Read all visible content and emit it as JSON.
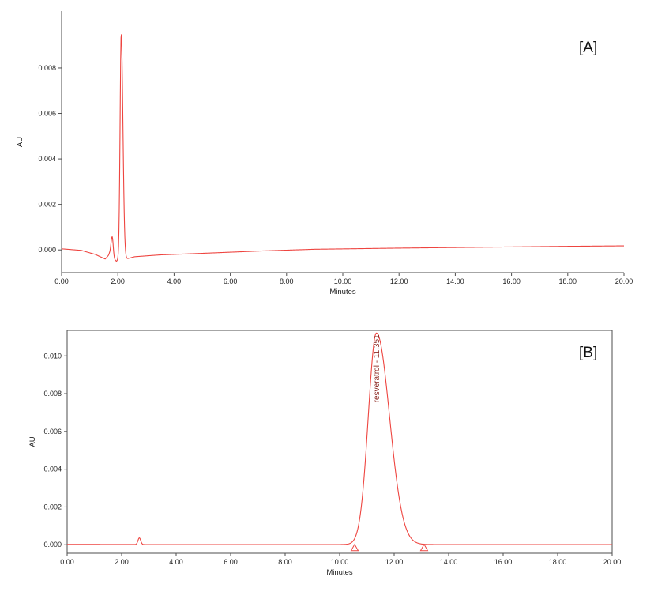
{
  "figure": {
    "background": "#ffffff"
  },
  "chart_data": [
    {
      "id": "A",
      "type": "line",
      "panel_label": "[A]",
      "title": "",
      "xlabel": "Minutes",
      "ylabel": "AU",
      "xlim": [
        0,
        20
      ],
      "ylim": [
        -0.001,
        0.0105
      ],
      "x_ticks": [
        0,
        2,
        4,
        6,
        8,
        10,
        12,
        14,
        16,
        18,
        20
      ],
      "x_tick_labels": [
        "0.00",
        "2.00",
        "4.00",
        "6.00",
        "8.00",
        "10.00",
        "12.00",
        "14.00",
        "16.00",
        "18.00",
        "20.00"
      ],
      "y_ticks": [
        0,
        0.002,
        0.004,
        0.006,
        0.008
      ],
      "y_tick_labels": [
        "0.000",
        "0.002",
        "0.004",
        "0.006",
        "0.008"
      ],
      "grid": false,
      "boxed": false,
      "line_color": "#ee4540",
      "axis_color": "#4d4d4d",
      "text_color": "#1c1c1c",
      "peak_label_color": "#8b2720",
      "baseline_points": [
        [
          0,
          5e-05
        ],
        [
          0.7,
          -2e-05
        ],
        [
          1.2,
          -0.0002
        ],
        [
          1.55,
          -0.0004
        ],
        [
          1.7,
          -0.0002
        ],
        [
          1.95,
          -0.0005
        ],
        [
          2.05,
          -0.0004
        ],
        [
          2.3,
          -0.0004
        ],
        [
          2.6,
          -0.0003
        ],
        [
          3.5,
          -0.00022
        ],
        [
          5,
          -0.00015
        ],
        [
          7,
          -5e-05
        ],
        [
          9,
          3e-05
        ],
        [
          12,
          8e-05
        ],
        [
          15,
          0.00012
        ],
        [
          18,
          0.00016
        ],
        [
          20,
          0.00018
        ]
      ],
      "peaks": [
        {
          "center": 1.8,
          "height": 0.0009,
          "sigma_left": 0.045,
          "sigma_right": 0.035,
          "label": ""
        },
        {
          "center": 2.12,
          "height": 0.0099,
          "sigma_left": 0.04,
          "sigma_right": 0.06,
          "label": ""
        }
      ],
      "integration_markers": []
    },
    {
      "id": "B",
      "type": "line",
      "panel_label": "[B]",
      "title": "",
      "xlabel": "Minutes",
      "ylabel": "AU",
      "xlim": [
        0,
        20
      ],
      "ylim": [
        -0.00045,
        0.01135
      ],
      "x_ticks": [
        0,
        2,
        4,
        6,
        8,
        10,
        12,
        14,
        16,
        18,
        20
      ],
      "x_tick_labels": [
        "0.00",
        "2.00",
        "4.00",
        "6.00",
        "8.00",
        "10.00",
        "12.00",
        "14.00",
        "16.00",
        "18.00",
        "20.00"
      ],
      "y_ticks": [
        0,
        0.002,
        0.004,
        0.006,
        0.008,
        0.01
      ],
      "y_tick_labels": [
        "0.000",
        "0.002",
        "0.004",
        "0.006",
        "0.008",
        "0.010"
      ],
      "grid": false,
      "boxed": true,
      "line_color": "#ee4540",
      "axis_color": "#4d4d4d",
      "text_color": "#1c1c1c",
      "peak_label_color": "#8b2720",
      "baseline_points": [
        [
          0,
          2e-05
        ],
        [
          3,
          1e-05
        ],
        [
          20,
          1e-05
        ]
      ],
      "peaks": [
        {
          "center": 2.65,
          "height": 0.00035,
          "sigma_left": 0.05,
          "sigma_right": 0.05,
          "label": ""
        },
        {
          "center": 11.351,
          "height": 0.0112,
          "sigma_left": 0.3,
          "sigma_right": 0.48,
          "label": "resveratrol - 11.351"
        }
      ],
      "integration_markers": [
        {
          "x": 10.55
        },
        {
          "x": 13.1
        }
      ]
    }
  ]
}
